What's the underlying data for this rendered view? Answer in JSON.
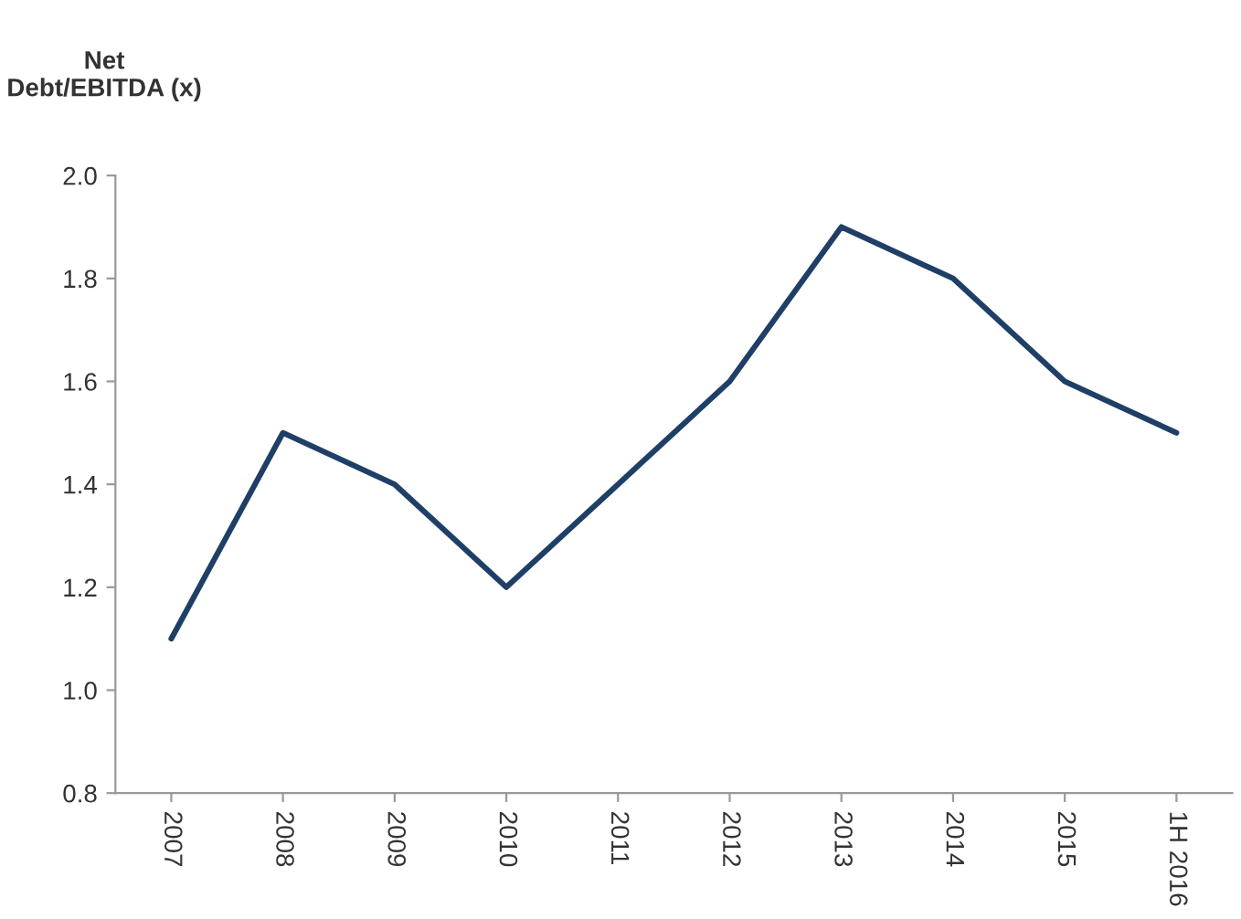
{
  "chart_data": {
    "type": "line",
    "ylabel": "Net\nDebt/EBITDA (x)",
    "categories": [
      "2007",
      "2008",
      "2009",
      "2010",
      "2011",
      "2012",
      "2013",
      "2014",
      "2015",
      "1H 2016"
    ],
    "series": [
      {
        "color": "#1f3f66",
        "values": [
          1.1,
          1.5,
          1.4,
          1.2,
          1.4,
          1.6,
          1.9,
          1.8,
          1.6,
          1.5
        ]
      }
    ],
    "ylim": [
      0.8,
      2.0
    ],
    "yticks": [
      {
        "value": 0.8,
        "label": "0.8"
      },
      {
        "value": 1.0,
        "label": "1.0"
      },
      {
        "value": 1.2,
        "label": "1.2"
      },
      {
        "value": 1.4,
        "label": "1.4"
      },
      {
        "value": 1.6,
        "label": "1.6"
      },
      {
        "value": 1.8,
        "label": "1.8"
      },
      {
        "value": 2.0,
        "label": "2.0"
      }
    ],
    "grid": false,
    "legend": false,
    "marker": "none",
    "line_style": "solid"
  }
}
